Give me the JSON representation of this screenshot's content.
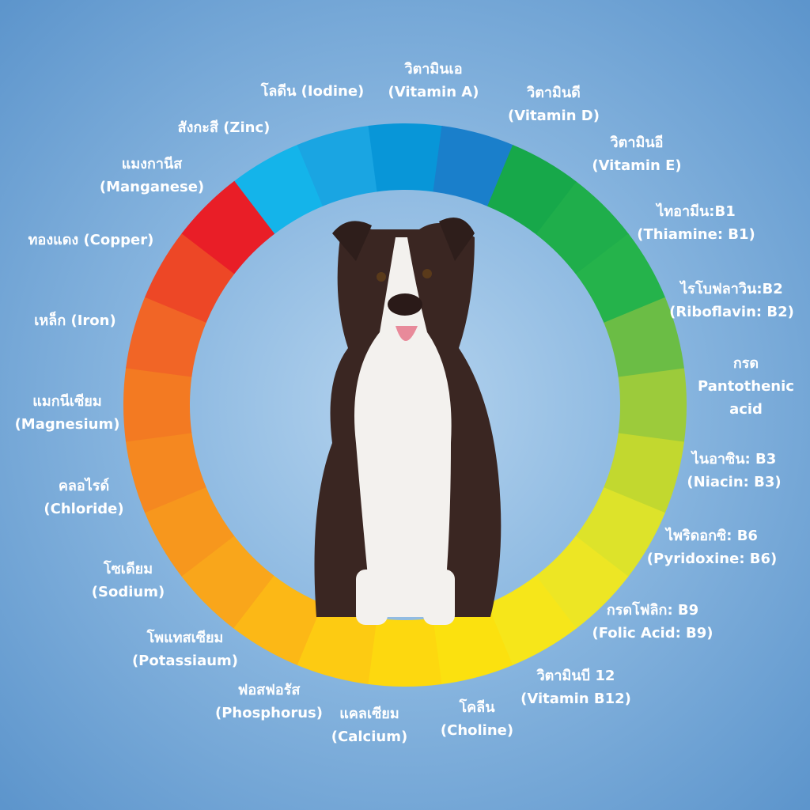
{
  "labels": [
    {
      "lines": [
        "วิตามินเอ",
        "(Vitamin A)"
      ]
    },
    {
      "lines": [
        "วิตามินดี",
        "(Vitamin D)"
      ]
    },
    {
      "lines": [
        "วิตามินอี",
        "(Vitamin E)"
      ]
    },
    {
      "lines": [
        "ไทอามีน:B1",
        "(Thiamine: B1)"
      ]
    },
    {
      "lines": [
        "ไรโบฟลาวิน:B2",
        "(Riboflavin: B2)"
      ]
    },
    {
      "lines": [
        "กรด",
        "Pantothenic",
        "acid"
      ]
    },
    {
      "lines": [
        "ไนอาซิน: B3",
        "(Niacin: B3)"
      ]
    },
    {
      "lines": [
        "ไพริดอกซิ: B6",
        "(Pyridoxine: B6)"
      ]
    },
    {
      "lines": [
        "กรดโฟลิก: B9",
        "(Folic Acid: B9)"
      ]
    },
    {
      "lines": [
        "วิตามินบี 12",
        "(Vitamin B12)"
      ]
    },
    {
      "lines": [
        "โคลีน",
        "(Choline)"
      ]
    },
    {
      "lines": [
        "แคลเซียม",
        "(Calcium)"
      ]
    },
    {
      "lines": [
        "ฟอสฟอรัส",
        "(Phosphorus)"
      ]
    },
    {
      "lines": [
        "โพแทสเซียม",
        "(Potassiaum)"
      ]
    },
    {
      "lines": [
        "โซเดียม",
        "(Sodium)"
      ]
    },
    {
      "lines": [
        "คลอไรด์",
        "(Chloride)"
      ]
    },
    {
      "lines": [
        "แมกนีเซียม",
        "(Magnesium)"
      ]
    },
    {
      "lines": [
        "เหล็ก (Iron)"
      ]
    },
    {
      "lines": [
        "ทองแดง (Copper)"
      ]
    },
    {
      "lines": [
        "แมงกานีส",
        "(Manganese)"
      ]
    },
    {
      "lines": [
        "สังกะสี (Zinc)"
      ]
    },
    {
      "lines": [
        "โลดีน (Iodine)"
      ]
    }
  ]
}
